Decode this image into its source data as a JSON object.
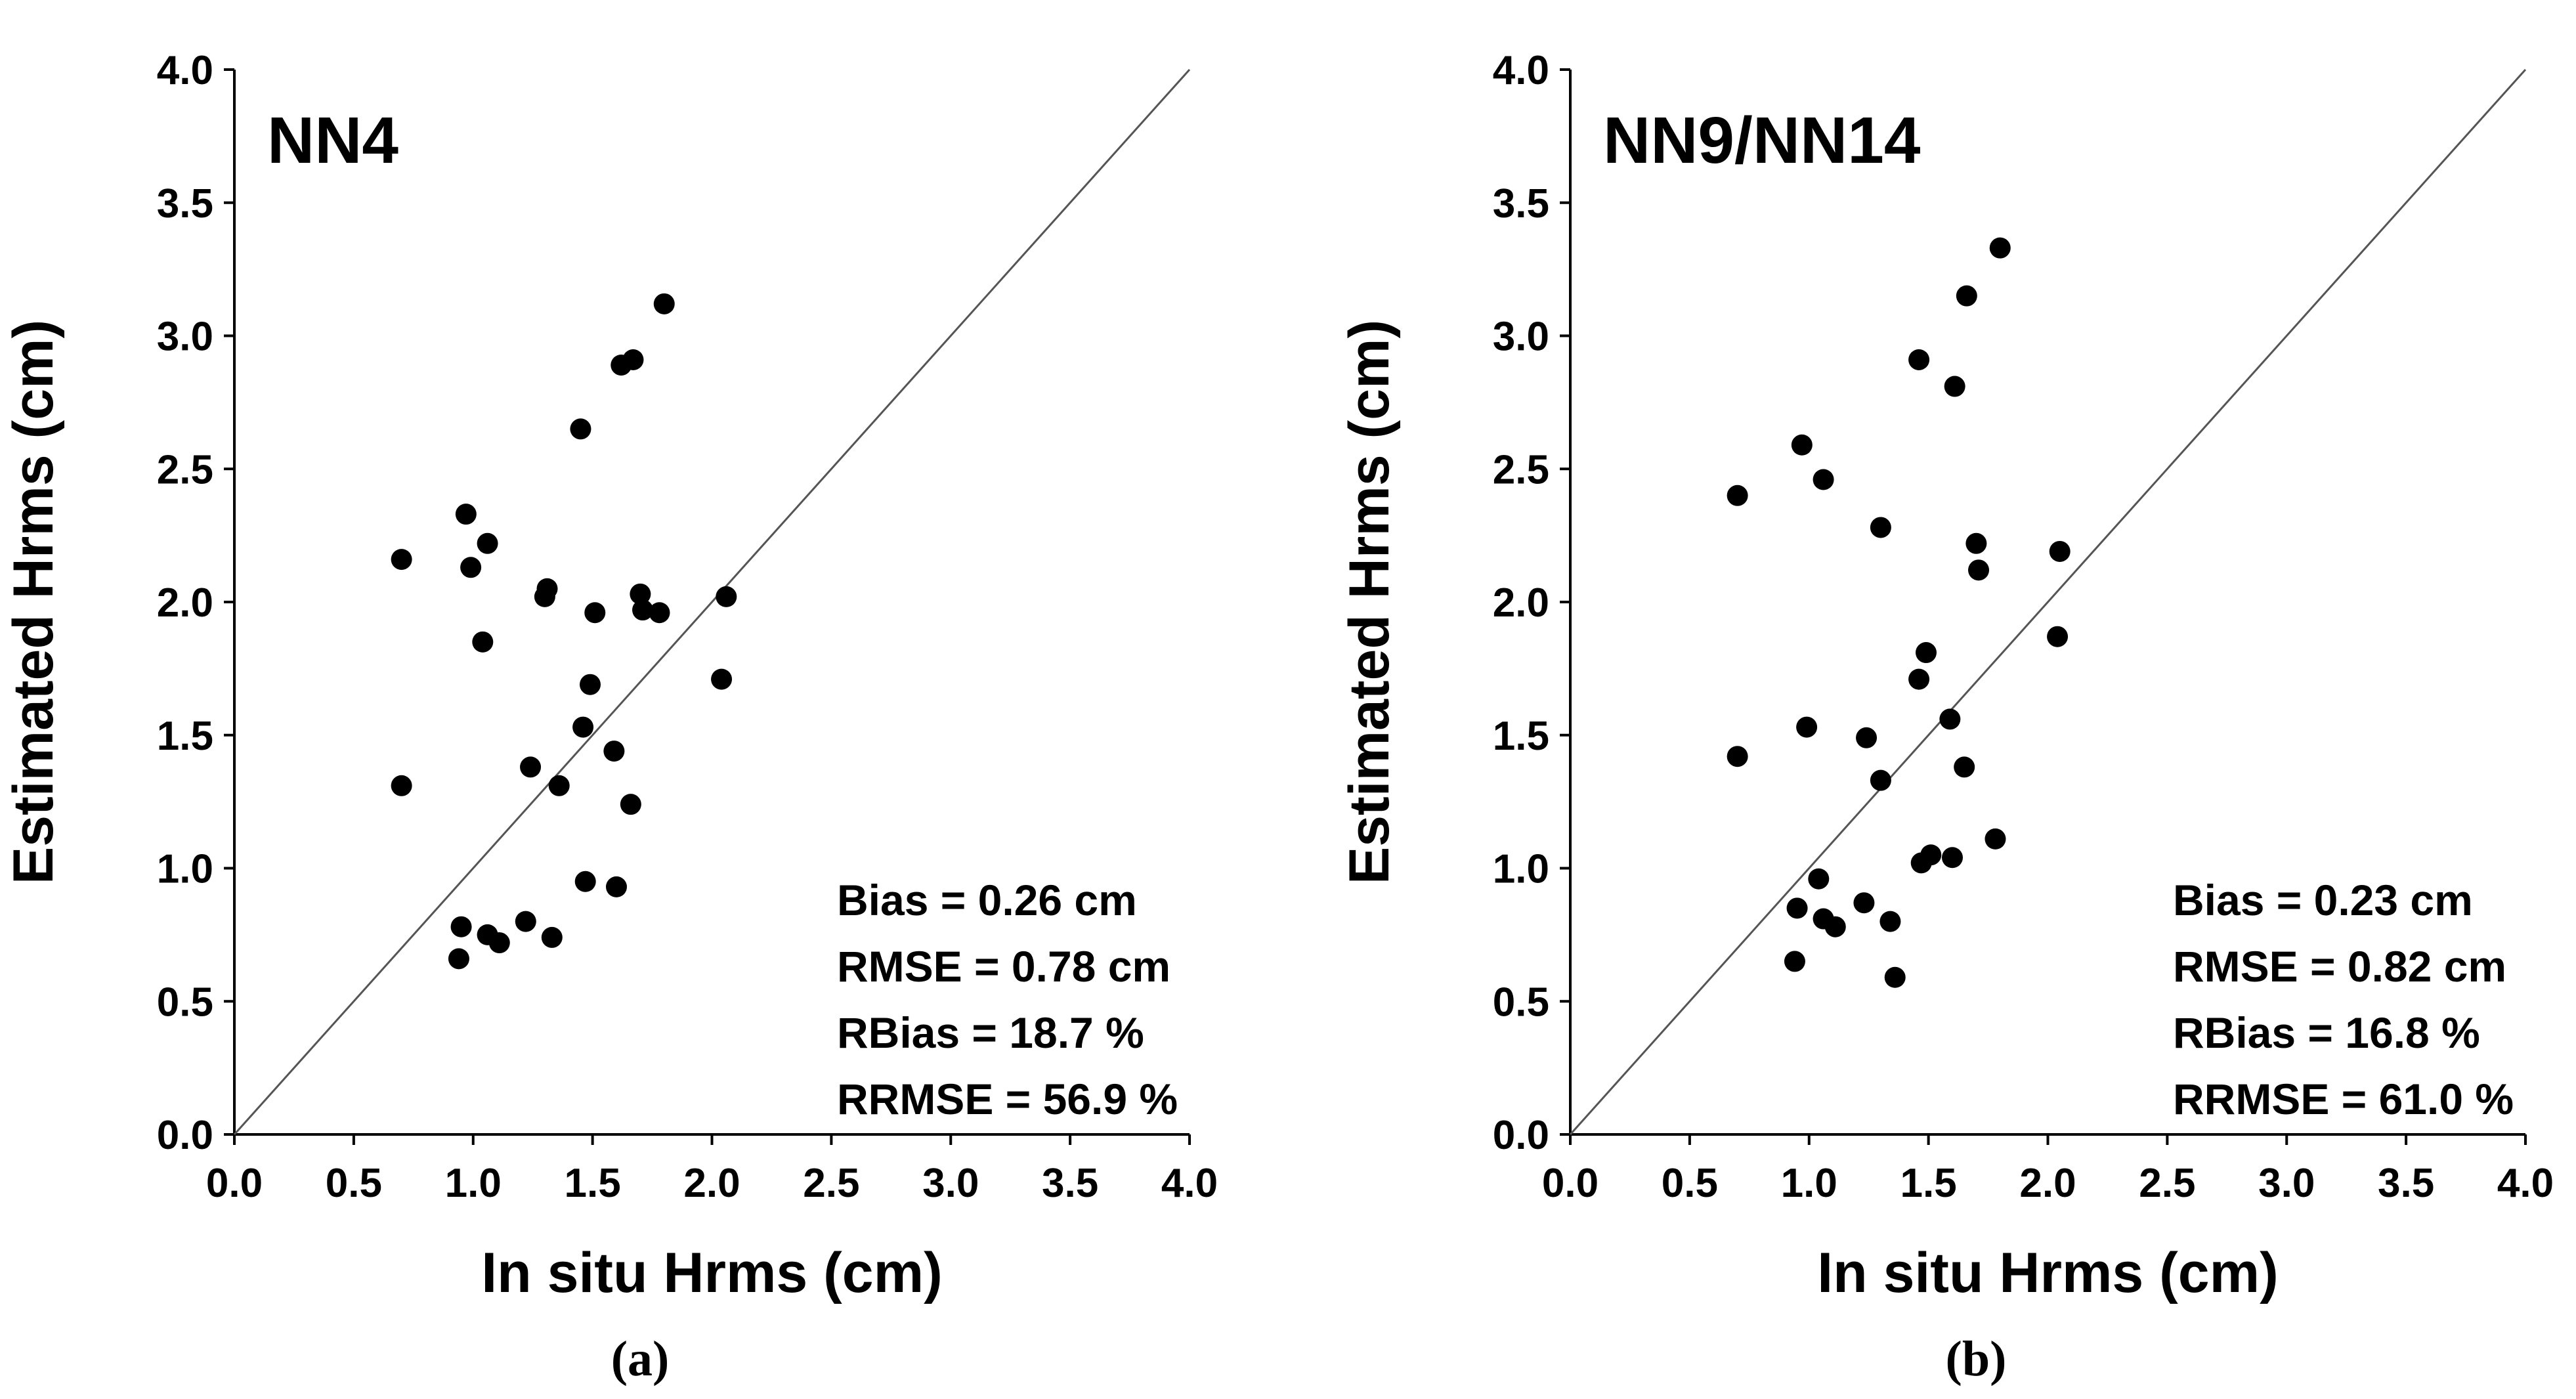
{
  "chart_data": [
    {
      "type": "scatter",
      "title": "NN4",
      "caption": "(a)",
      "xlabel": "In situ Hrms (cm)",
      "ylabel": "Estimated Hrms (cm)",
      "xlim": [
        0,
        4
      ],
      "ylim": [
        0,
        4
      ],
      "ticks": [
        "0.0",
        "0.5",
        "1.0",
        "1.5",
        "2.0",
        "2.5",
        "3.0",
        "3.5",
        "4.0"
      ],
      "identity_line": true,
      "stats": [
        "Bias = 0.26 cm",
        "RMSE = 0.78 cm",
        "RBias = 18.7 %",
        "RRMSE = 56.9 %"
      ],
      "points": [
        [
          0.7,
          2.16
        ],
        [
          0.7,
          1.31
        ],
        [
          0.94,
          0.66
        ],
        [
          0.95,
          0.78
        ],
        [
          0.97,
          2.33
        ],
        [
          0.99,
          2.13
        ],
        [
          1.04,
          1.85
        ],
        [
          1.06,
          2.22
        ],
        [
          1.06,
          0.75
        ],
        [
          1.11,
          0.72
        ],
        [
          1.22,
          0.8
        ],
        [
          1.24,
          1.38
        ],
        [
          1.3,
          2.02
        ],
        [
          1.31,
          2.05
        ],
        [
          1.33,
          0.74
        ],
        [
          1.36,
          1.31
        ],
        [
          1.45,
          2.65
        ],
        [
          1.46,
          1.53
        ],
        [
          1.47,
          0.95
        ],
        [
          1.49,
          1.69
        ],
        [
          1.51,
          1.96
        ],
        [
          1.59,
          1.44
        ],
        [
          1.6,
          0.93
        ],
        [
          1.62,
          2.89
        ],
        [
          1.66,
          1.24
        ],
        [
          1.67,
          2.91
        ],
        [
          1.7,
          2.03
        ],
        [
          1.71,
          1.97
        ],
        [
          1.78,
          1.96
        ],
        [
          1.8,
          3.12
        ],
        [
          2.04,
          1.71
        ],
        [
          2.06,
          2.02
        ]
      ]
    },
    {
      "type": "scatter",
      "title": "NN9/NN14",
      "caption": "(b)",
      "xlabel": "In situ Hrms (cm)",
      "ylabel": "Estimated Hrms (cm)",
      "xlim": [
        0,
        4
      ],
      "ylim": [
        0,
        4
      ],
      "ticks": [
        "0.0",
        "0.5",
        "1.0",
        "1.5",
        "2.0",
        "2.5",
        "3.0",
        "3.5",
        "4.0"
      ],
      "identity_line": true,
      "stats": [
        "Bias = 0.23 cm",
        "RMSE = 0.82 cm",
        "RBias = 16.8 %",
        "RRMSE = 61.0 %"
      ],
      "points": [
        [
          0.7,
          2.4
        ],
        [
          0.7,
          1.42
        ],
        [
          0.94,
          0.65
        ],
        [
          0.95,
          0.85
        ],
        [
          0.97,
          2.59
        ],
        [
          0.99,
          1.53
        ],
        [
          1.04,
          0.96
        ],
        [
          1.06,
          0.81
        ],
        [
          1.06,
          2.46
        ],
        [
          1.11,
          0.78
        ],
        [
          1.23,
          0.87
        ],
        [
          1.24,
          1.49
        ],
        [
          1.3,
          2.28
        ],
        [
          1.3,
          1.33
        ],
        [
          1.34,
          0.8
        ],
        [
          1.36,
          0.59
        ],
        [
          1.46,
          2.91
        ],
        [
          1.46,
          1.71
        ],
        [
          1.47,
          1.02
        ],
        [
          1.49,
          1.81
        ],
        [
          1.51,
          1.05
        ],
        [
          1.59,
          1.56
        ],
        [
          1.6,
          1.04
        ],
        [
          1.61,
          2.81
        ],
        [
          1.65,
          1.38
        ],
        [
          1.66,
          3.15
        ],
        [
          1.7,
          2.22
        ],
        [
          1.71,
          2.12
        ],
        [
          1.78,
          1.11
        ],
        [
          1.8,
          3.33
        ],
        [
          2.04,
          1.87
        ],
        [
          2.05,
          2.19
        ]
      ]
    }
  ]
}
